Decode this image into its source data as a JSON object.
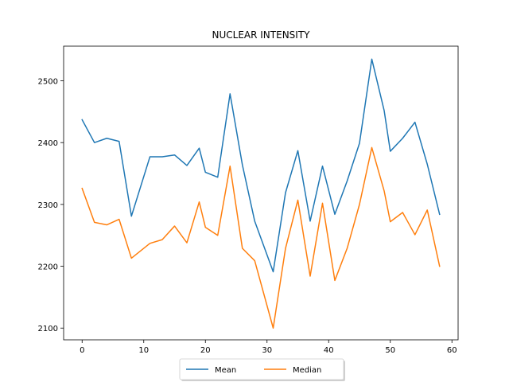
{
  "chart_data": {
    "type": "line",
    "title": "NUCLEAR INTENSITY",
    "xlabel": "",
    "ylabel": "",
    "xlim": [
      -3,
      61
    ],
    "ylim": [
      2081,
      2556
    ],
    "x_ticks": [
      0,
      10,
      20,
      30,
      40,
      50,
      60
    ],
    "y_ticks": [
      2100,
      2200,
      2300,
      2400,
      2500
    ],
    "grid": false,
    "legend": {
      "placement": "bottom-center",
      "columns": 2
    },
    "series": [
      {
        "name": "Mean",
        "color": "#1f77b4",
        "x": [
          0,
          2,
          4,
          6,
          8,
          11,
          13,
          15,
          17,
          19,
          20,
          22,
          24,
          26,
          28,
          31,
          33,
          35,
          37,
          39,
          41,
          43,
          45,
          47,
          49,
          50,
          52,
          54,
          56,
          58
        ],
        "y": [
          2437,
          2400,
          2407,
          2402,
          2281,
          2377,
          2377,
          2380,
          2363,
          2391,
          2352,
          2344,
          2479,
          2364,
          2273,
          2191,
          2319,
          2387,
          2273,
          2362,
          2284,
          2338,
          2399,
          2535,
          2452,
          2386,
          2407,
          2433,
          2365,
          2284
        ]
      },
      {
        "name": "Median",
        "color": "#ff7f0e",
        "x": [
          0,
          2,
          4,
          6,
          8,
          11,
          13,
          15,
          17,
          19,
          20,
          22,
          24,
          26,
          28,
          31,
          33,
          35,
          37,
          39,
          41,
          43,
          45,
          47,
          49,
          50,
          52,
          54,
          56,
          58
        ],
        "y": [
          2326,
          2271,
          2267,
          2276,
          2213,
          2237,
          2243,
          2265,
          2238,
          2304,
          2263,
          2250,
          2362,
          2229,
          2209,
          2100,
          2229,
          2307,
          2184,
          2302,
          2177,
          2229,
          2300,
          2392,
          2322,
          2272,
          2287,
          2251,
          2291,
          2200
        ]
      }
    ]
  }
}
